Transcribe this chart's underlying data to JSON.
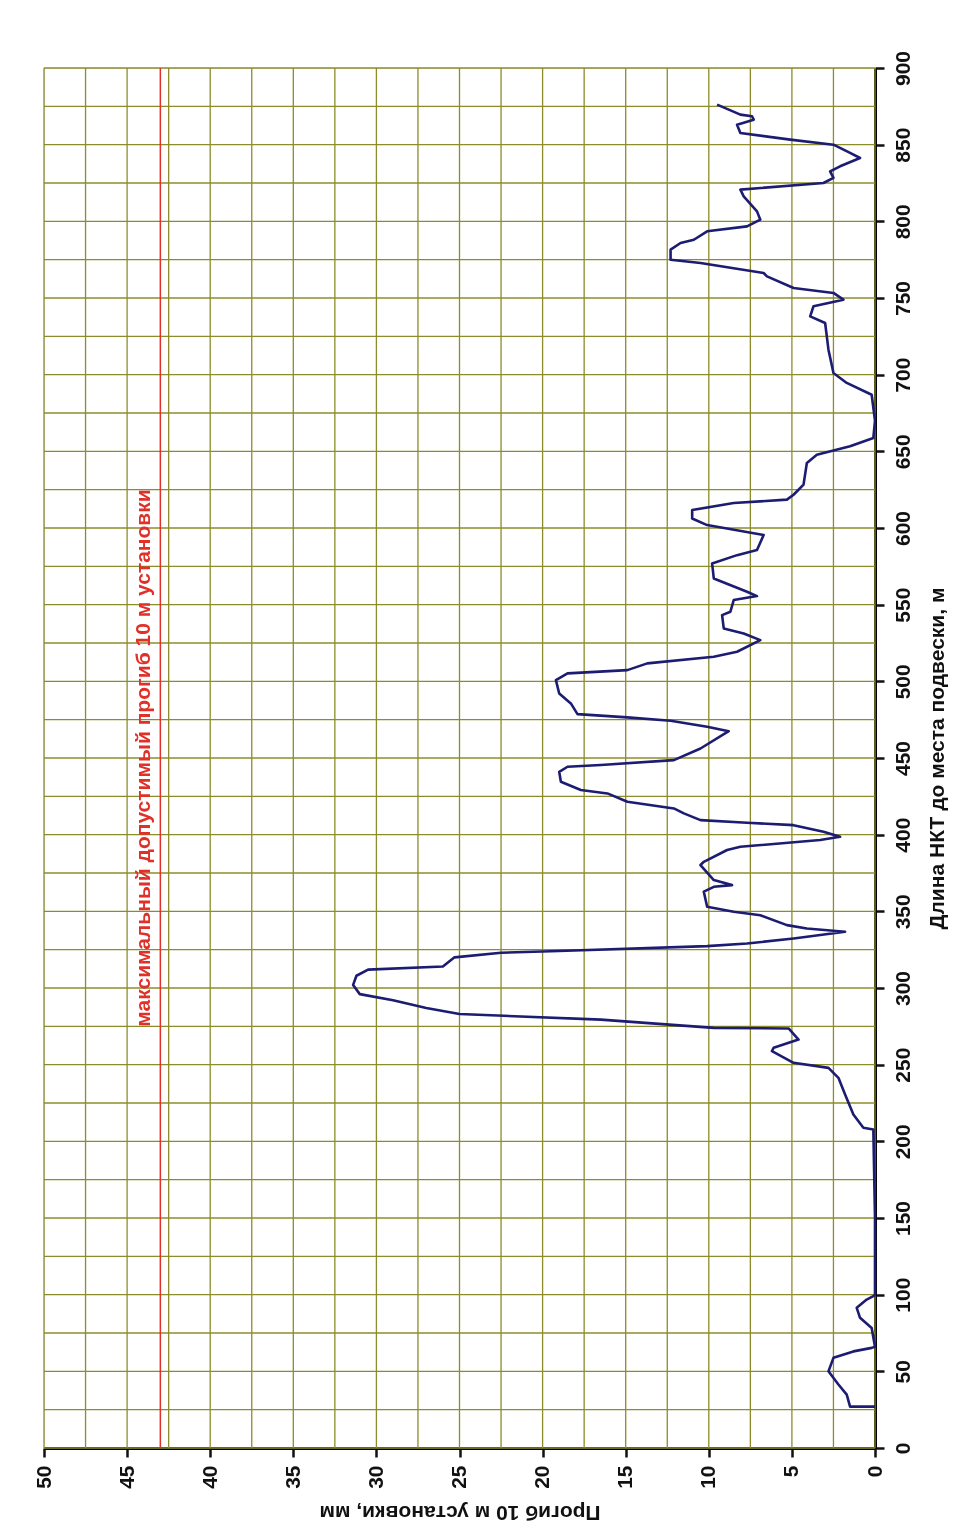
{
  "chart_data": {
    "type": "line",
    "xlabel": "Прогиб 10 м установки, мм",
    "ylabel": "Длина НКТ до места подвески, м",
    "xlim": [
      50,
      0
    ],
    "ylim": [
      0,
      900
    ],
    "xticks": [
      50,
      45,
      40,
      35,
      30,
      25,
      20,
      15,
      10,
      5,
      0
    ],
    "yticks": [
      0,
      50,
      100,
      150,
      200,
      250,
      300,
      350,
      400,
      450,
      500,
      550,
      600,
      650,
      700,
      750,
      800,
      850,
      900
    ],
    "grid": true,
    "line_style": "solid",
    "marker": "none",
    "ref_lines": [
      {
        "axis": "x",
        "value": 43,
        "label": "максимальный допустимый прогиб 10 м установки",
        "color": "#e03028"
      }
    ],
    "series": [
      {
        "color": "#1c1c72",
        "x": [
          0,
          1.5,
          1.7,
          2.2,
          2.8,
          2.5,
          1.3,
          0.2,
          0,
          0.2,
          0.9,
          1.1,
          0.5,
          0.1,
          0,
          0,
          0.1,
          0.7,
          1.3,
          1.8,
          2.2,
          2.8,
          4.9,
          6.2,
          6.1,
          4.6,
          5.2,
          9.7,
          16.5,
          25,
          27,
          29,
          31,
          31.4,
          31.2,
          30.5,
          26,
          25.3,
          22.5,
          19.5,
          10.1,
          7.7,
          4.9,
          1.8,
          4.1,
          5.3,
          6.9,
          8.5,
          10.1,
          10.3,
          9.7,
          8.6,
          9.7,
          10.5,
          10.3,
          8.9,
          8.1,
          3.3,
          2.1,
          3.1,
          4.9,
          7.7,
          10.5,
          11.5,
          12.1,
          14.9,
          16.1,
          17.7,
          18.9,
          19,
          18.5,
          16.5,
          12.1,
          10.5,
          8.8,
          10.1,
          12.3,
          14.9,
          17.9,
          18.3,
          19,
          19.2,
          18.5,
          14.9,
          13.7,
          9.7,
          8.3,
          6.9,
          7.9,
          9.1,
          9.2,
          8.7,
          8.5,
          7.1,
          7.7,
          9.7,
          9.8,
          8.3,
          7.1,
          6.7,
          10.1,
          11,
          11,
          8.5,
          5.3,
          4.9,
          4.3,
          4.1,
          3.5,
          1.5,
          0.1,
          0,
          0.2,
          1.7,
          2.5,
          2.8,
          3,
          3.9,
          3.7,
          1.9,
          2.5,
          4.9,
          6.5,
          6.7,
          10.5,
          12.3,
          12.3,
          11.7,
          10.9,
          10.1,
          7.7,
          6.9,
          7.1,
          7.9,
          8.1,
          3.1,
          2.5,
          2.7,
          2.1,
          0.9,
          1.5,
          2.5,
          5.1,
          8.1,
          8.3,
          7.3,
          7.4,
          8.1,
          9.5
        ],
        "values": [
          27,
          27,
          34.8,
          41.4,
          50,
          58.8,
          63,
          65.3,
          66,
          78.3,
          84.9,
          91.4,
          96.8,
          99,
          100,
          150,
          207.7,
          208.8,
          217.5,
          230.5,
          241.4,
          247.9,
          251.2,
          258.8,
          261,
          266.4,
          273.6,
          274,
          279.4,
          283,
          287,
          292,
          296,
          302,
          308,
          312,
          314,
          320,
          323,
          324,
          327.3,
          329,
          332.3,
          336.7,
          338.8,
          341,
          347.5,
          349.7,
          353,
          362.8,
          366,
          367.1,
          370.4,
          380.2,
          382.3,
          390,
          392.1,
          396.5,
          398.6,
          401.9,
          406.2,
          407.8,
          409.5,
          413.9,
          417.1,
          421.5,
          426.9,
          429.1,
          434.5,
          441,
          444.3,
          445.4,
          448.6,
          456.2,
          467.5,
          470.4,
          474.3,
          476.5,
          478.6,
          485.6,
          492.1,
          500.8,
          505.2,
          507.3,
          511.7,
          516,
          519.3,
          526.9,
          531.2,
          534.5,
          543.2,
          545.4,
          553,
          555.6,
          558.4,
          567.1,
          576.9,
          582.3,
          585.6,
          595.4,
          601.9,
          606.2,
          611.7,
          616.3,
          618.5,
          621.7,
          628.3,
          642.4,
          647.8,
          653.3,
          658.7,
          670,
          686.9,
          694.6,
          701.1,
          716.3,
          733.7,
          738,
          744.6,
          748.9,
          753.3,
          756.5,
          764.1,
          766.3,
          772.8,
          775,
          781.5,
          785.9,
          788,
          793.5,
          796.7,
          801.1,
          806.5,
          816.3,
          820.7,
          825,
          828.3,
          832.6,
          835.9,
          841.3,
          844.6,
          850,
          853.3,
          857.6,
          863,
          866.3,
          868.5,
          869.6,
          876.1
        ]
      }
    ]
  }
}
